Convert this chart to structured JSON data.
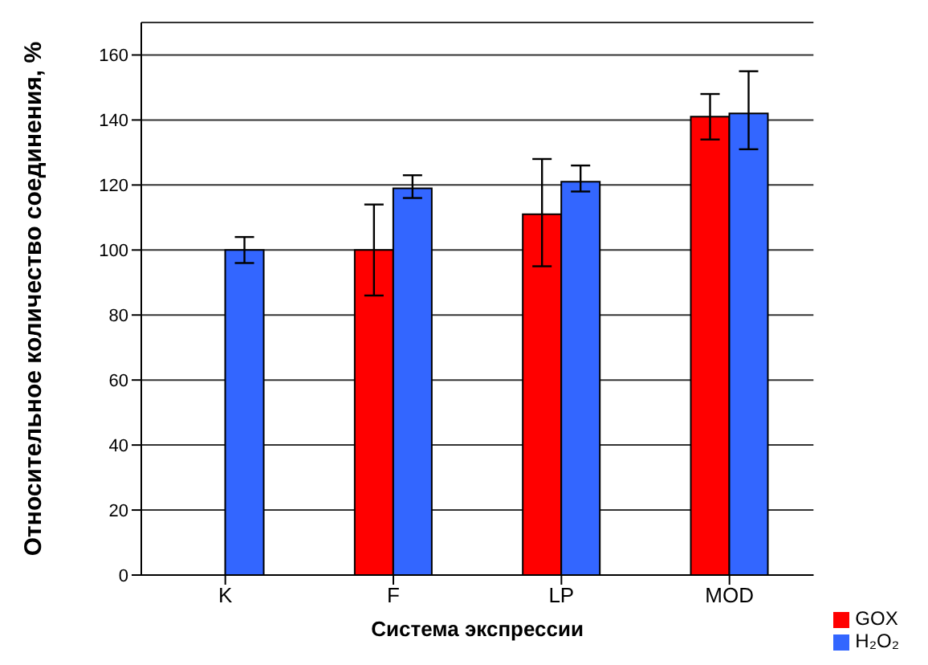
{
  "chart_data": {
    "type": "bar",
    "xlabel": "Система экспрессии",
    "ylabel": "Относительное количество соединения, %",
    "categories": [
      "K",
      "F",
      "LP",
      "MOD"
    ],
    "series": [
      {
        "name": "GOX",
        "color": "#ff0000",
        "values": [
          null,
          100,
          111,
          141
        ],
        "errors": [
          null,
          [
            86,
            114
          ],
          [
            95,
            128
          ],
          [
            134,
            148
          ]
        ]
      },
      {
        "name": "H₂O₂",
        "color": "#3366ff",
        "values": [
          100,
          119,
          121,
          142
        ],
        "errors": [
          [
            96,
            104
          ],
          [
            116,
            123
          ],
          [
            118,
            126
          ],
          [
            131,
            155
          ]
        ]
      }
    ],
    "ylim": [
      0,
      170
    ],
    "yticks": [
      0,
      20,
      40,
      60,
      80,
      100,
      120,
      140,
      160
    ],
    "grid": "y",
    "legend": "bottom right"
  }
}
